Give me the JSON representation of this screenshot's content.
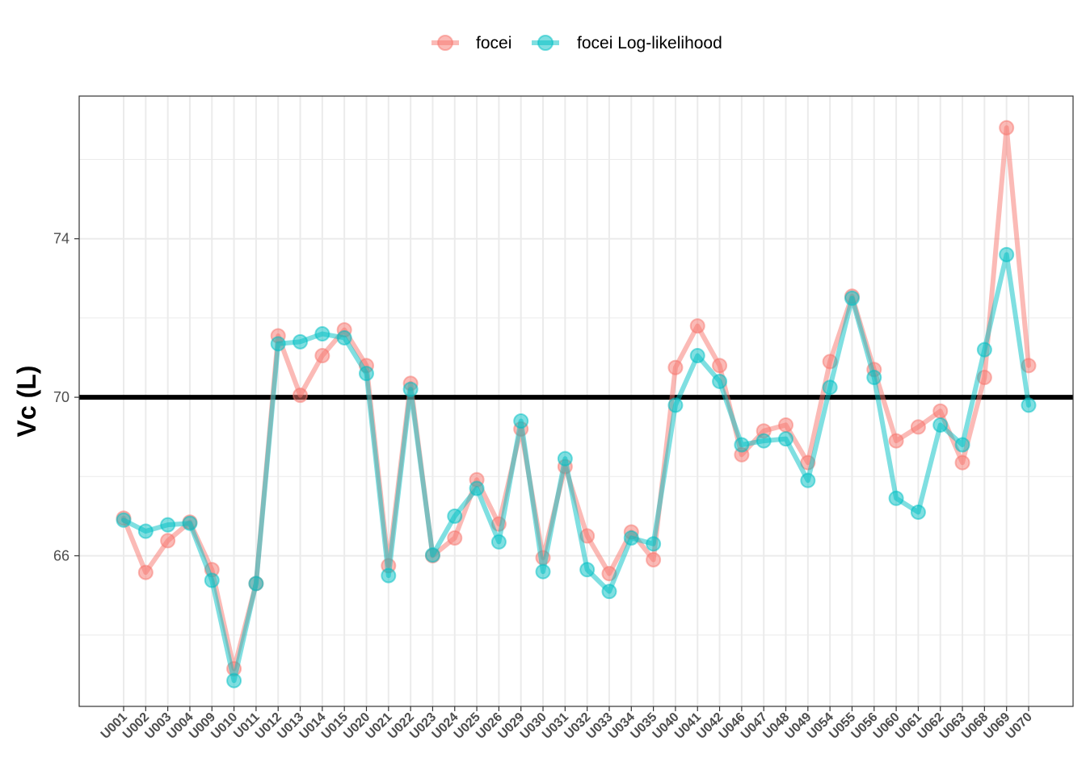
{
  "chart_data": {
    "type": "line",
    "ylabel": "Vc (L)",
    "xlabel": "",
    "ylim": [
      62.2,
      77.6
    ],
    "yticks": [
      66,
      70,
      74
    ],
    "reference_line": 70,
    "grid": true,
    "legend_position": "top",
    "categories": [
      "U001",
      "U002",
      "U003",
      "U004",
      "U009",
      "U010",
      "U011",
      "U012",
      "U013",
      "U014",
      "U015",
      "U020",
      "U021",
      "U022",
      "U023",
      "U024",
      "U025",
      "U026",
      "U029",
      "U030",
      "U031",
      "U032",
      "U033",
      "U034",
      "U035",
      "U040",
      "U041",
      "U042",
      "U046",
      "U047",
      "U048",
      "U049",
      "U054",
      "U055",
      "U056",
      "U060",
      "U061",
      "U062",
      "U063",
      "U068",
      "U069",
      "U070"
    ],
    "series": [
      {
        "name": "focei",
        "color": "#F8766D",
        "values": [
          66.95,
          65.58,
          66.38,
          66.85,
          65.65,
          63.15,
          65.3,
          71.55,
          70.05,
          71.05,
          71.7,
          70.8,
          65.75,
          70.35,
          66.0,
          66.45,
          67.92,
          66.8,
          69.2,
          65.95,
          68.25,
          66.5,
          65.55,
          66.6,
          65.9,
          70.75,
          71.8,
          70.8,
          68.55,
          69.15,
          69.3,
          68.35,
          70.9,
          72.55,
          70.7,
          68.9,
          69.25,
          69.65,
          68.35,
          70.5,
          76.8,
          70.8
        ]
      },
      {
        "name": "focei Log-likelihood",
        "color": "#00BFC4",
        "values": [
          66.9,
          66.62,
          66.78,
          66.82,
          65.38,
          62.85,
          65.3,
          71.35,
          71.4,
          71.6,
          71.5,
          70.6,
          65.5,
          70.2,
          66.02,
          67.0,
          67.7,
          66.35,
          69.4,
          65.6,
          68.45,
          65.65,
          65.1,
          66.45,
          66.3,
          69.8,
          71.05,
          70.4,
          68.8,
          68.9,
          68.95,
          67.9,
          70.25,
          72.5,
          70.5,
          67.45,
          67.1,
          69.3,
          68.8,
          71.2,
          73.6,
          69.8
        ]
      }
    ]
  }
}
